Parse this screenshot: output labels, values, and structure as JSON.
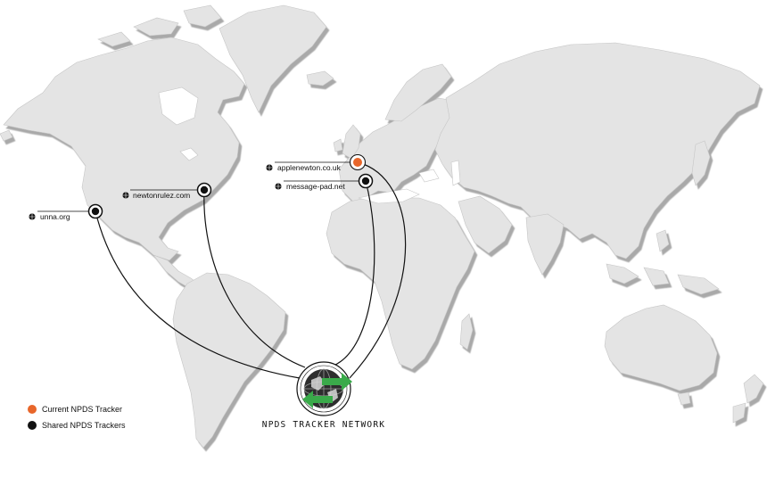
{
  "map": {
    "land_color": "#e4e4e4",
    "shadow_color": "#bdbdbd",
    "arc_color": "#111111"
  },
  "trackers": [
    {
      "label": "applenewton.co.uk",
      "kind": "current",
      "icon": "globe-icon"
    },
    {
      "label": "message-pad.net",
      "kind": "shared",
      "icon": "globe-icon"
    },
    {
      "label": "newtonrulez.com",
      "kind": "shared",
      "icon": "globe-icon"
    },
    {
      "label": "unna.org",
      "kind": "shared",
      "icon": "globe-icon"
    }
  ],
  "hub": {
    "title": "NPDS TRACKER NETWORK",
    "icon": "globe-with-arrows-icon",
    "arrow_color": "#3aaa4a"
  },
  "legend": {
    "current": {
      "label": "Current NPDS Tracker",
      "color": "#e8662a"
    },
    "shared": {
      "label": "Shared NPDS Trackers",
      "color": "#111111"
    }
  }
}
